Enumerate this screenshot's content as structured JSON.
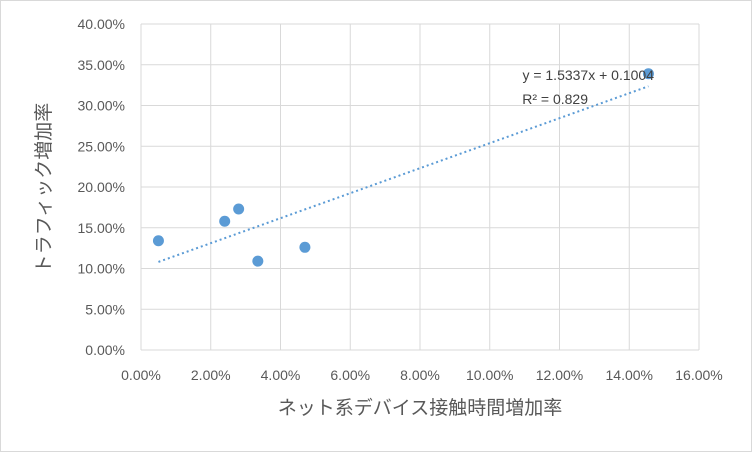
{
  "chart_data": {
    "type": "scatter",
    "title": "",
    "xlabel": "ネット系デバイス接触時間増加率",
    "ylabel": "トラフィック増加率",
    "xlim": [
      0,
      0.16
    ],
    "ylim": [
      0,
      0.4
    ],
    "x_ticks": [
      "0.00%",
      "2.00%",
      "4.00%",
      "6.00%",
      "8.00%",
      "10.00%",
      "12.00%",
      "14.00%",
      "16.00%"
    ],
    "y_ticks": [
      "0.00%",
      "5.00%",
      "10.00%",
      "15.00%",
      "20.00%",
      "25.00%",
      "30.00%",
      "35.00%",
      "40.00%"
    ],
    "series": [
      {
        "points": [
          {
            "x": 0.005,
            "y": 0.134
          },
          {
            "x": 0.024,
            "y": 0.158
          },
          {
            "x": 0.028,
            "y": 0.173
          },
          {
            "x": 0.0335,
            "y": 0.109
          },
          {
            "x": 0.047,
            "y": 0.126
          },
          {
            "x": 0.1455,
            "y": 0.339
          }
        ],
        "color": "#5b9bd5"
      }
    ],
    "trendline": {
      "type": "linear",
      "slope": 1.5337,
      "intercept": 0.1004,
      "x_range": [
        0.005,
        0.1455
      ],
      "color": "#5b9bd5",
      "style": "dotted",
      "equation": "y = 1.5337x + 0.1004",
      "r_squared": "R² = 0.829"
    },
    "grid": true,
    "legend": "none"
  }
}
